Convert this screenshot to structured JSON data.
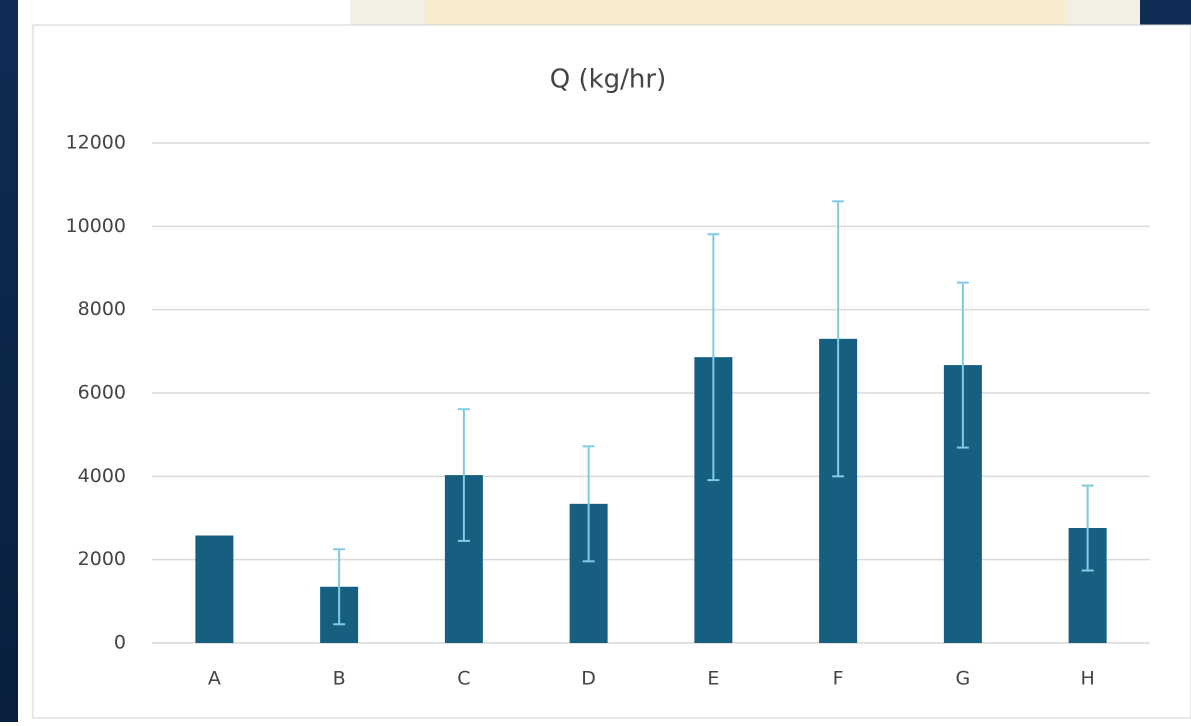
{
  "chart_data": {
    "type": "bar",
    "title": "Q (kg/hr)",
    "categories": [
      "A",
      "B",
      "C",
      "D",
      "E",
      "F",
      "G",
      "H"
    ],
    "values": [
      2580,
      1350,
      4030,
      3340,
      6860,
      7300,
      6670,
      2760
    ],
    "errors": [
      null,
      900,
      1580,
      1380,
      2950,
      3300,
      1980,
      1020
    ],
    "color": "#175f80",
    "error_color": "#7ecbe2",
    "ylim": [
      0,
      12000
    ],
    "yticks": [
      0,
      2000,
      4000,
      6000,
      8000,
      10000,
      12000
    ],
    "grid": true
  }
}
